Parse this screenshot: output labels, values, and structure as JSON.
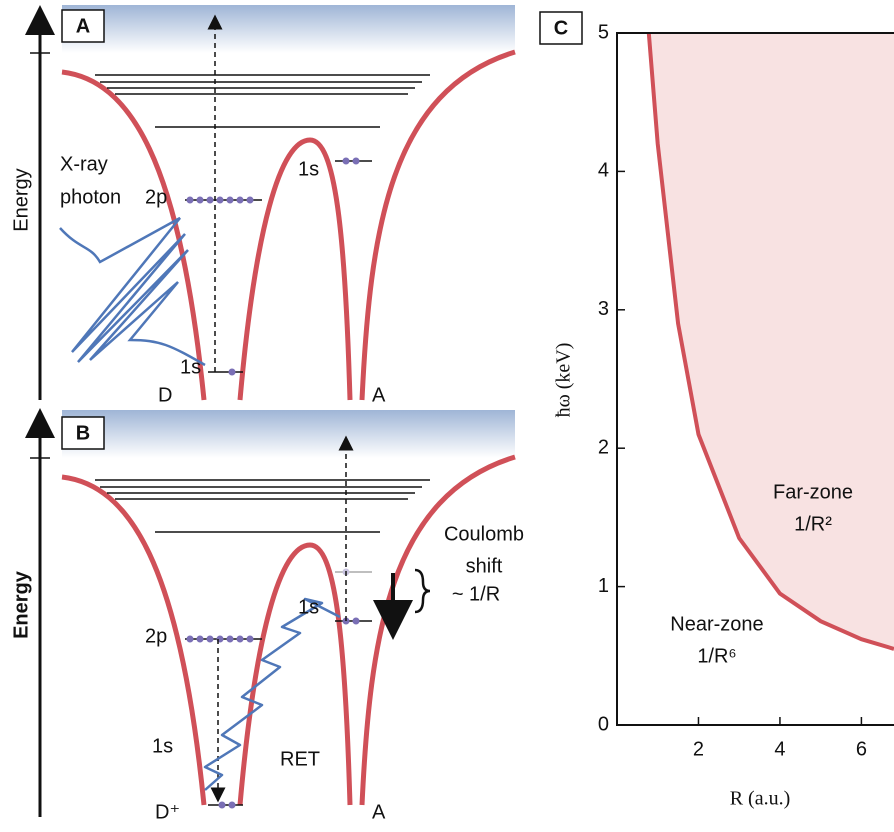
{
  "panel_a": {
    "label": "A",
    "axis_label": "Energy",
    "photon_label": [
      "X-ray",
      "photon"
    ],
    "donor_levels": [
      "2p",
      "1s"
    ],
    "acceptor_level": "1s",
    "donor": "D",
    "acceptor": "A"
  },
  "panel_b": {
    "label": "B",
    "axis_label": "Energy",
    "donor_levels": [
      "2p",
      "1s"
    ],
    "acceptor_level": "1s",
    "shift_label": [
      "Coulomb",
      "shift",
      "~ 1/R"
    ],
    "transfer_label": "RET",
    "donor": "D⁺",
    "acceptor": "A"
  },
  "chart_data": {
    "type": "area",
    "panel_label": "C",
    "x": [
      0.78,
      1,
      1.5,
      2,
      3,
      4,
      5,
      6,
      6.8
    ],
    "values": [
      5,
      4.2,
      2.9,
      2.1,
      1.35,
      0.95,
      0.75,
      0.62,
      0.55
    ],
    "xlim": [
      0,
      6.8
    ],
    "ylim": [
      0,
      5
    ],
    "xticks": [
      2,
      4,
      6
    ],
    "yticks": [
      0,
      1,
      2,
      3,
      4,
      5
    ],
    "xlabel": "R (a.u.)",
    "ylabel": "ħω (keV)",
    "color": "#d05058",
    "fill_color": "#f8e2e2",
    "annotations": [
      {
        "title": "Far-zone",
        "law": "1/R²"
      },
      {
        "title": "Near-zone",
        "law": "1/R⁶"
      }
    ]
  }
}
